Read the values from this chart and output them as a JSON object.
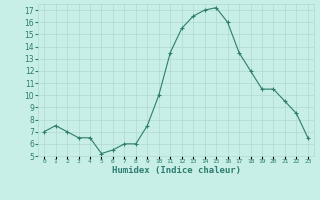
{
  "x": [
    0,
    1,
    2,
    3,
    4,
    5,
    6,
    7,
    8,
    9,
    10,
    11,
    12,
    13,
    14,
    15,
    16,
    17,
    18,
    19,
    20,
    21,
    22,
    23
  ],
  "y": [
    7.0,
    7.5,
    7.0,
    6.5,
    6.5,
    5.2,
    5.5,
    6.0,
    6.0,
    7.5,
    10.0,
    13.5,
    15.5,
    16.5,
    17.0,
    17.2,
    16.0,
    13.5,
    12.0,
    10.5,
    10.5,
    9.5,
    8.5,
    6.5
  ],
  "xlim": [
    -0.5,
    23.5
  ],
  "ylim": [
    5,
    17.5
  ],
  "yticks": [
    5,
    6,
    7,
    8,
    9,
    10,
    11,
    12,
    13,
    14,
    15,
    16,
    17
  ],
  "xtick_labels": [
    "0",
    "1",
    "2",
    "3",
    "4",
    "5",
    "6",
    "7",
    "8",
    "9",
    "10",
    "11",
    "12",
    "13",
    "14",
    "15",
    "16",
    "17",
    "18",
    "19",
    "20",
    "21",
    "22",
    "23"
  ],
  "xlabel": "Humidex (Indice chaleur)",
  "line_color": "#2d7d6e",
  "marker": "+",
  "bg_color": "#c8eee8",
  "grid_color": "#b0d8d0",
  "tick_color": "#2d7d6e"
}
